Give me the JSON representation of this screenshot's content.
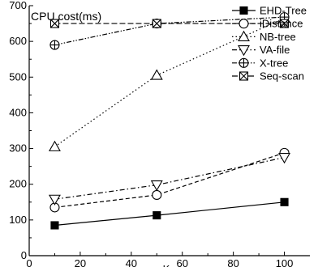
{
  "chart_data": {
    "type": "line",
    "title": "CPU cost(ms)",
    "xlabel": "K",
    "ylabel": "",
    "xlim": [
      0,
      110
    ],
    "ylim": [
      0,
      700
    ],
    "xticks": [
      0,
      20,
      40,
      60,
      80,
      100
    ],
    "yticks": [
      0,
      100,
      200,
      300,
      400,
      500,
      600,
      700
    ],
    "grid": false,
    "legend_position": "top-right",
    "x": [
      10,
      50,
      100
    ],
    "series": [
      {
        "name": "EHD-Tree",
        "marker": "filled-square",
        "dash": "solid",
        "values": [
          85,
          113,
          150
        ]
      },
      {
        "name": "iDistance",
        "marker": "circle",
        "dash": "dashed",
        "values": [
          135,
          170,
          288
        ]
      },
      {
        "name": "NB-tree",
        "marker": "triangle-up",
        "dash": "dotted",
        "values": [
          305,
          505,
          665
        ]
      },
      {
        "name": "VA-file",
        "marker": "triangle-down",
        "dash": "dash-dot",
        "values": [
          158,
          198,
          275
        ]
      },
      {
        "name": "X-tree",
        "marker": "circle-plus",
        "dash": "dash-dot-dot",
        "values": [
          590,
          650,
          668
        ]
      },
      {
        "name": "Seq-scan",
        "marker": "square-x",
        "dash": "dashed-long",
        "values": [
          650,
          650,
          650
        ]
      }
    ]
  }
}
